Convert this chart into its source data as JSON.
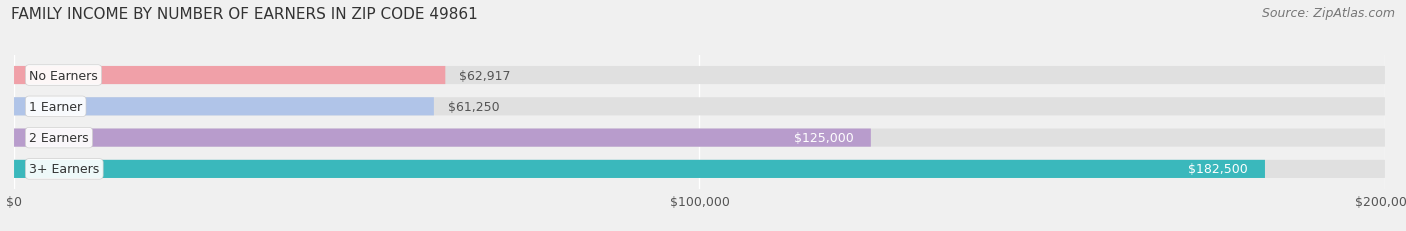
{
  "title": "FAMILY INCOME BY NUMBER OF EARNERS IN ZIP CODE 49861",
  "source": "Source: ZipAtlas.com",
  "categories": [
    "No Earners",
    "1 Earner",
    "2 Earners",
    "3+ Earners"
  ],
  "values": [
    62917,
    61250,
    125000,
    182500
  ],
  "bar_colors": [
    "#f0a0a8",
    "#b0c4e8",
    "#b89ccc",
    "#3ab8bc"
  ],
  "label_colors": [
    "#555555",
    "#555555",
    "#ffffff",
    "#ffffff"
  ],
  "value_labels": [
    "$62,917",
    "$61,250",
    "$125,000",
    "$182,500"
  ],
  "xlim": [
    0,
    200000
  ],
  "xticks": [
    0,
    100000,
    200000
  ],
  "xtick_labels": [
    "$0",
    "$100,000",
    "$200,000"
  ],
  "background_color": "#f0f0f0",
  "bar_bg_color": "#e0e0e0",
  "title_fontsize": 11,
  "source_fontsize": 9,
  "bar_label_fontsize": 9,
  "value_fontsize": 9,
  "tick_fontsize": 9
}
